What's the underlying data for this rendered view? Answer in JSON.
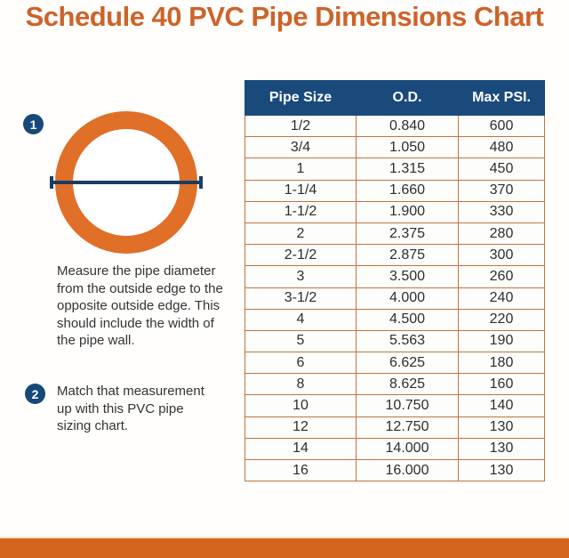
{
  "title": "Schedule 40 PVC Pipe Dimensions Chart",
  "steps": [
    {
      "number": "1",
      "text": "Measure the pipe diameter from the outside edge to the opposite outside edge. This should include the width of the pipe wall."
    },
    {
      "number": "2",
      "text": "Match that measurement up with this PVC pipe sizing chart."
    }
  ],
  "chart_data": {
    "type": "table",
    "title": "Schedule 40 PVC Pipe Dimensions Chart",
    "columns": [
      "Pipe Size",
      "O.D.",
      "Max PSI."
    ],
    "rows": [
      [
        "1/2",
        "0.840",
        "600"
      ],
      [
        "3/4",
        "1.050",
        "480"
      ],
      [
        "1",
        "1.315",
        "450"
      ],
      [
        "1-1/4",
        "1.660",
        "370"
      ],
      [
        "1-1/2",
        "1.900",
        "330"
      ],
      [
        "2",
        "2.375",
        "280"
      ],
      [
        "2-1/2",
        "2.875",
        "300"
      ],
      [
        "3",
        "3.500",
        "260"
      ],
      [
        "3-1/2",
        "4.000",
        "240"
      ],
      [
        "4",
        "4.500",
        "220"
      ],
      [
        "5",
        "5.563",
        "190"
      ],
      [
        "6",
        "6.625",
        "180"
      ],
      [
        "8",
        "8.625",
        "160"
      ],
      [
        "10",
        "10.750",
        "140"
      ],
      [
        "12",
        "12.750",
        "130"
      ],
      [
        "14",
        "14.000",
        "130"
      ],
      [
        "16",
        "16.000",
        "130"
      ]
    ]
  },
  "colors": {
    "title_orange": "#cd6329",
    "ring_orange": "#e06f28",
    "footer_orange": "#d2641e",
    "header_navy": "#1a4a7c",
    "badge_navy": "#164879",
    "line_navy": "#1b3c63",
    "table_border_orange": "#c0743f"
  }
}
